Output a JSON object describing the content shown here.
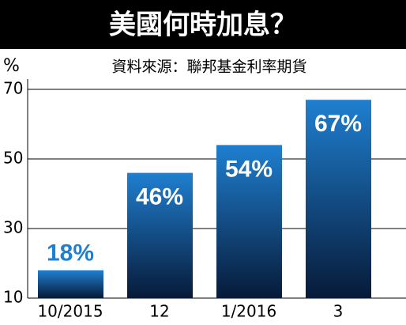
{
  "chart_data": {
    "type": "bar",
    "title": "美國何時加息？",
    "subtitle": "資料來源：聯邦基金利率期貨",
    "y_label": "%",
    "categories": [
      "10/2015",
      "12",
      "1/2016",
      "3"
    ],
    "values": [
      18,
      46,
      54,
      67
    ],
    "value_labels": [
      "18%",
      "46%",
      "54%",
      "67%"
    ],
    "color": "#1f7fd0",
    "ylim": [
      10,
      70
    ],
    "yticks": [
      10,
      30,
      50,
      70
    ],
    "grid": true
  }
}
